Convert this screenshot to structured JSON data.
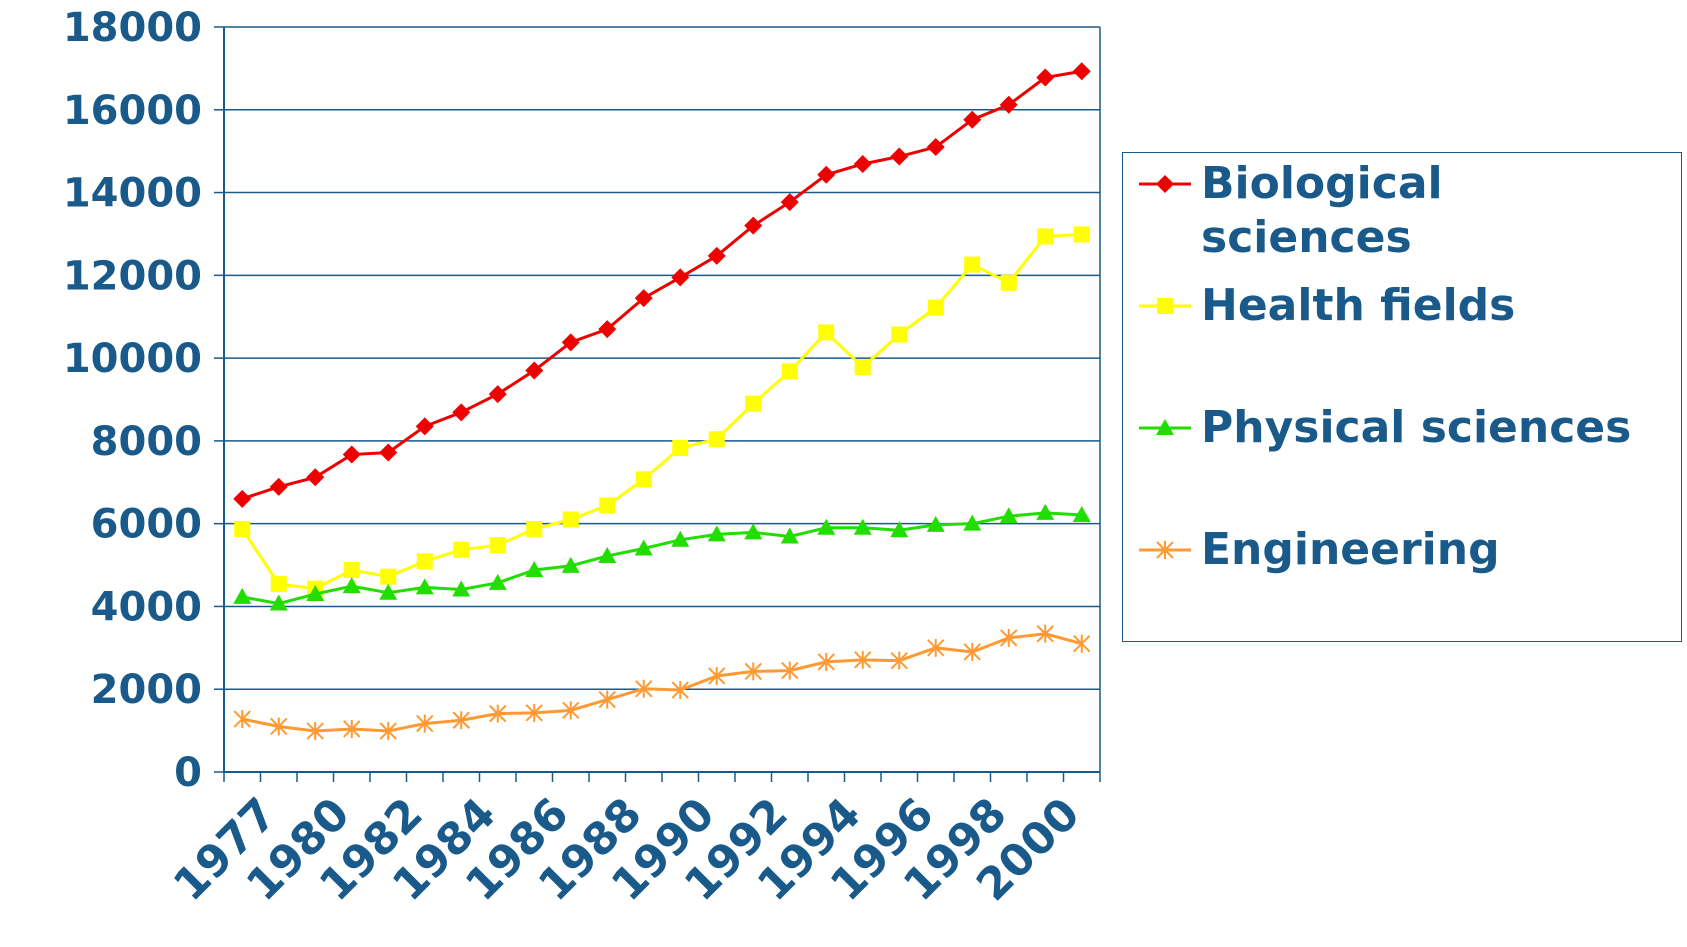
{
  "chart_data": {
    "type": "line",
    "categories": [
      "1977",
      null,
      "1980",
      null,
      "1982",
      null,
      "1984",
      null,
      "1986",
      null,
      "1988",
      null,
      "1990",
      null,
      "1992",
      null,
      "1994",
      null,
      "1996",
      null,
      "1998",
      null,
      "2000",
      null
    ],
    "series": [
      {
        "name": "Biological sciences",
        "color": "#ee0000",
        "marker": "diamond",
        "values": [
          6600,
          6890,
          7120,
          7670,
          7720,
          8350,
          8690,
          9130,
          9700,
          10380,
          10700,
          11450,
          11950,
          12470,
          13200,
          13770,
          14430,
          14690,
          14870,
          15100,
          15760,
          16120,
          16780,
          16930
        ]
      },
      {
        "name": "Health fields",
        "color": "#ffff00",
        "marker": "square",
        "values": [
          5870,
          4540,
          4430,
          4880,
          4720,
          5090,
          5370,
          5480,
          5870,
          6100,
          6440,
          7070,
          7830,
          8040,
          8900,
          9680,
          10620,
          9780,
          10570,
          11220,
          12260,
          11820,
          12940,
          12990
        ]
      },
      {
        "name": "Physical sciences",
        "color": "#22dd00",
        "marker": "triangle",
        "values": [
          4230,
          4070,
          4300,
          4490,
          4330,
          4460,
          4410,
          4570,
          4880,
          4980,
          5220,
          5400,
          5610,
          5740,
          5790,
          5690,
          5900,
          5900,
          5840,
          5970,
          6000,
          6180,
          6260,
          6210
        ]
      },
      {
        "name": "Engineering",
        "color": "#ff9933",
        "marker": "x",
        "values": [
          1280,
          1100,
          990,
          1040,
          990,
          1170,
          1250,
          1410,
          1430,
          1490,
          1750,
          2010,
          1980,
          2320,
          2430,
          2450,
          2660,
          2710,
          2690,
          3000,
          2900,
          3240,
          3340,
          3100
        ]
      }
    ],
    "ylim": [
      0,
      18000
    ],
    "yticks": [
      0,
      2000,
      4000,
      6000,
      8000,
      10000,
      12000,
      14000,
      16000,
      18000
    ],
    "grid": true
  }
}
